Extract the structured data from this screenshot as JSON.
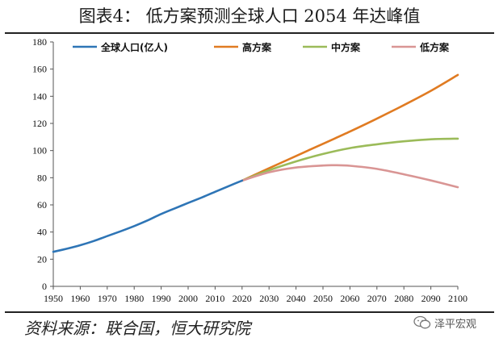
{
  "title": "图表4：  低方案预测全球人口 2054 年达峰值",
  "source": "资料来源：联合国，恒大研究院",
  "watermark": {
    "icon": "wechat-icon",
    "text": "泽平宏观"
  },
  "colors": {
    "total": "#2e75b6",
    "high": "#e07b22",
    "medium": "#9bbb59",
    "low": "#d99594",
    "axis": "#555555"
  },
  "chart_data": {
    "type": "line",
    "xlim": [
      1950,
      2100
    ],
    "ylim": [
      0,
      180
    ],
    "x_ticks": [
      1950,
      1960,
      1970,
      1980,
      1990,
      2000,
      2010,
      2020,
      2030,
      2040,
      2050,
      2060,
      2070,
      2080,
      2090,
      2100
    ],
    "y_ticks": [
      0,
      20,
      40,
      60,
      80,
      100,
      120,
      140,
      160,
      180
    ],
    "legend_position": "top",
    "series": [
      {
        "name": "全球人口(亿人)",
        "color_key": "total",
        "x": [
          1950,
          1955,
          1960,
          1965,
          1970,
          1975,
          1980,
          1985,
          1990,
          1995,
          2000,
          2005,
          2010,
          2015,
          2020
        ],
        "values": [
          25.4,
          27.7,
          30.3,
          33.4,
          37.0,
          40.6,
          44.4,
          48.6,
          53.3,
          57.4,
          61.4,
          65.4,
          69.6,
          73.8,
          77.9
        ]
      },
      {
        "name": "高方案",
        "color_key": "high",
        "x": [
          2020,
          2030,
          2040,
          2050,
          2060,
          2070,
          2080,
          2090,
          2100
        ],
        "values": [
          77.9,
          87.0,
          96.0,
          105.0,
          114.0,
          123.5,
          133.5,
          144.0,
          155.7
        ]
      },
      {
        "name": "中方案",
        "color_key": "medium",
        "x": [
          2020,
          2030,
          2040,
          2050,
          2060,
          2070,
          2080,
          2090,
          2100
        ],
        "values": [
          77.9,
          85.5,
          92.0,
          97.5,
          101.8,
          104.6,
          106.8,
          108.3,
          108.8
        ]
      },
      {
        "name": "低方案",
        "color_key": "low",
        "x": [
          2020,
          2030,
          2040,
          2050,
          2054,
          2060,
          2070,
          2080,
          2090,
          2100
        ],
        "values": [
          77.9,
          84.0,
          87.5,
          89.0,
          89.2,
          88.8,
          86.5,
          82.5,
          78.0,
          73.0
        ]
      }
    ]
  }
}
